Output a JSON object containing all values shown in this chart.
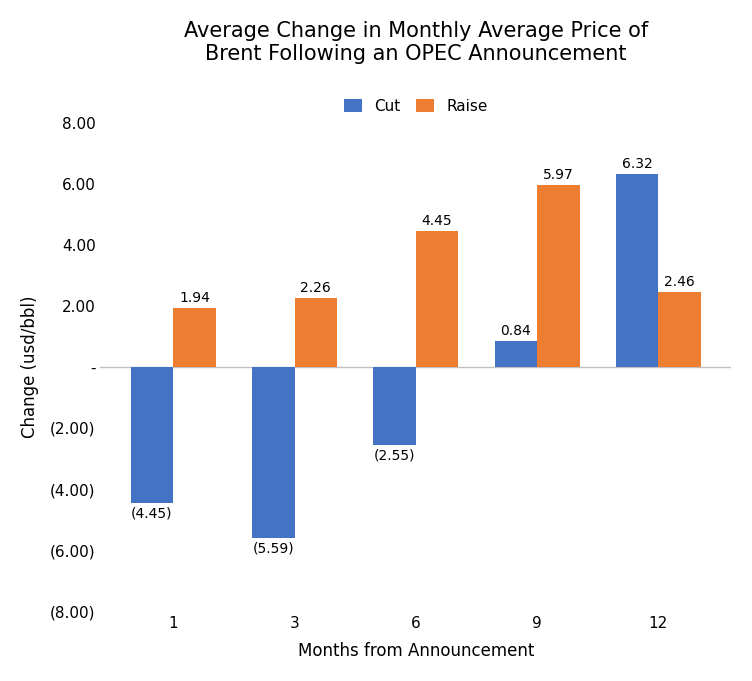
{
  "title": "Average Change in Monthly Average Price of\nBrent Following an OPEC Announcement",
  "xlabel": "Months from Announcement",
  "ylabel": "Change (usd/bbl)",
  "categories": [
    1,
    3,
    6,
    9,
    12
  ],
  "cut_values": [
    -4.45,
    -5.59,
    -2.55,
    0.84,
    6.32
  ],
  "raise_values": [
    1.94,
    2.26,
    4.45,
    5.97,
    2.46
  ],
  "cut_color": "#4472C4",
  "raise_color": "#ED7D31",
  "cut_label": "Cut",
  "raise_label": "Raise",
  "ylim": [
    -8.0,
    8.0
  ],
  "yticks": [
    -8.0,
    -6.0,
    -4.0,
    -2.0,
    0.0,
    2.0,
    4.0,
    6.0,
    8.0
  ],
  "bar_width": 0.35,
  "background_color": "#ffffff",
  "grid_color": "#c0c0c0",
  "title_fontsize": 15,
  "label_fontsize": 12,
  "tick_fontsize": 11,
  "legend_fontsize": 11,
  "annotation_fontsize": 10
}
